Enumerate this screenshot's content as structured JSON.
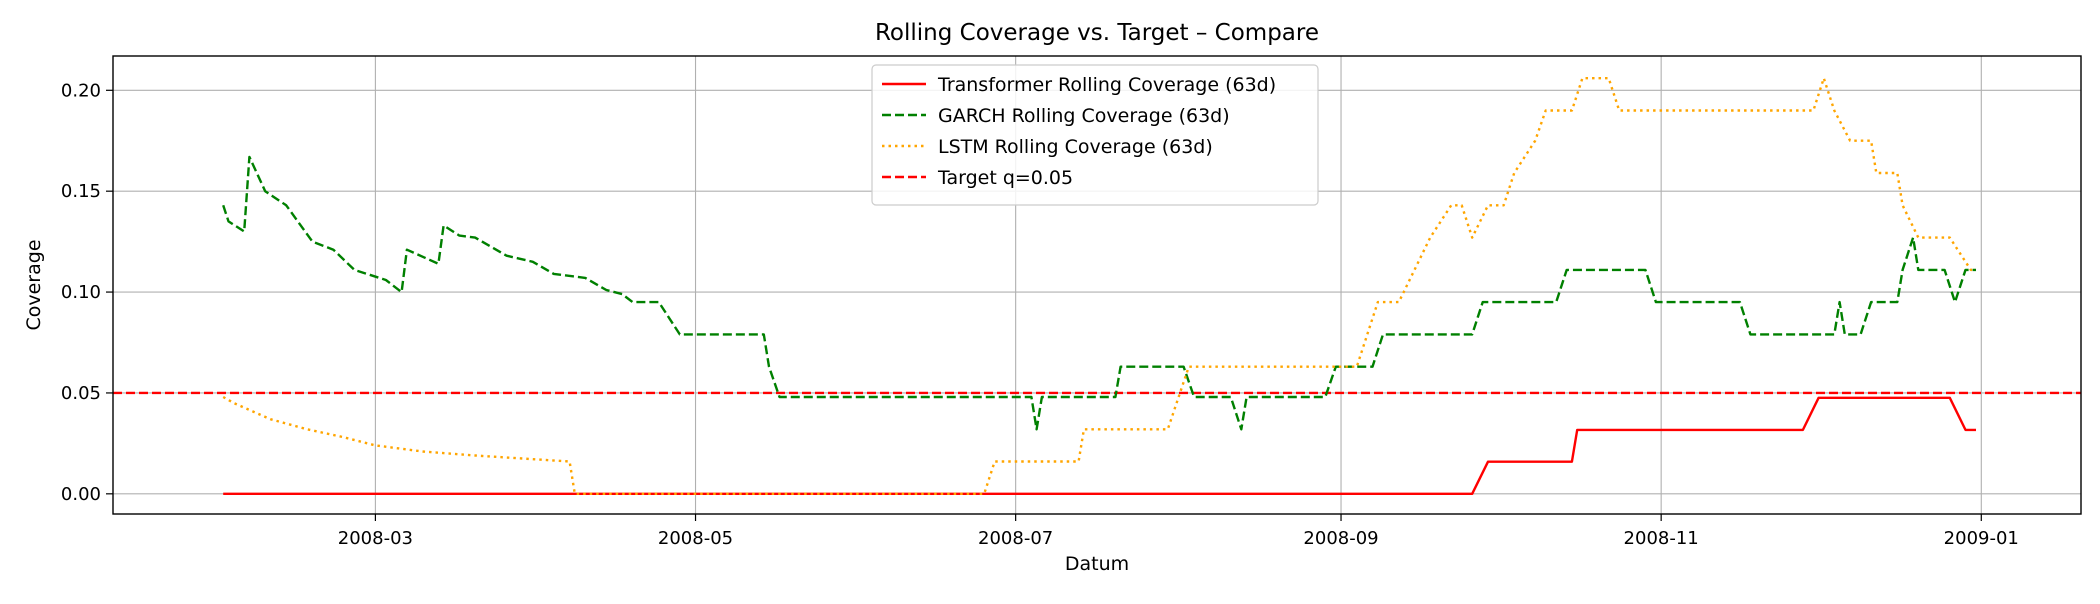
{
  "chart_data": {
    "type": "line",
    "title": "Rolling Coverage vs. Target – Compare",
    "xlabel": "Datum",
    "ylabel": "Coverage",
    "x_type": "date",
    "xlim": [
      "2008-01-11",
      "2009-01-20"
    ],
    "ylim": [
      -0.01,
      0.217
    ],
    "x_ticks": [
      "2008-03-01",
      "2008-05-01",
      "2008-07-01",
      "2008-09-01",
      "2008-11-01",
      "2009-01-01"
    ],
    "x_tick_labels": [
      "2008-03",
      "2008-05",
      "2008-07",
      "2008-09",
      "2008-11",
      "2009-01"
    ],
    "y_ticks": [
      0.0,
      0.05,
      0.1,
      0.15,
      0.2
    ],
    "y_tick_labels": [
      "0.00",
      "0.05",
      "0.10",
      "0.15",
      "0.20"
    ],
    "grid": true,
    "legend_position": "upper-center",
    "series": [
      {
        "name": "Transformer Rolling Coverage (63d)",
        "color": "#ff0000",
        "style": "solid",
        "points": [
          [
            "2008-02-01",
            0.0
          ],
          [
            "2008-09-26",
            0.0
          ],
          [
            "2008-09-29",
            0.0159
          ],
          [
            "2008-10-15",
            0.0159
          ],
          [
            "2008-10-16",
            0.0317
          ],
          [
            "2008-11-28",
            0.0317
          ],
          [
            "2008-12-01",
            0.0476
          ],
          [
            "2008-12-26",
            0.0476
          ],
          [
            "2008-12-29",
            0.0317
          ],
          [
            "2008-12-31",
            0.0317
          ]
        ]
      },
      {
        "name": "GARCH Rolling Coverage (63d)",
        "color": "#008000",
        "style": "dashed",
        "points": [
          [
            "2008-02-01",
            0.143
          ],
          [
            "2008-02-02",
            0.135
          ],
          [
            "2008-02-05",
            0.13
          ],
          [
            "2008-02-06",
            0.167
          ],
          [
            "2008-02-09",
            0.15
          ],
          [
            "2008-02-13",
            0.143
          ],
          [
            "2008-02-18",
            0.125
          ],
          [
            "2008-02-22",
            0.121
          ],
          [
            "2008-02-26",
            0.111
          ],
          [
            "2008-03-03",
            0.106
          ],
          [
            "2008-03-06",
            0.1
          ],
          [
            "2008-03-07",
            0.121
          ],
          [
            "2008-03-13",
            0.114
          ],
          [
            "2008-03-14",
            0.133
          ],
          [
            "2008-03-17",
            0.128
          ],
          [
            "2008-03-20",
            0.127
          ],
          [
            "2008-03-26",
            0.118
          ],
          [
            "2008-03-31",
            0.115
          ],
          [
            "2008-04-04",
            0.109
          ],
          [
            "2008-04-10",
            0.107
          ],
          [
            "2008-04-14",
            0.101
          ],
          [
            "2008-04-17",
            0.099
          ],
          [
            "2008-04-19",
            0.095
          ],
          [
            "2008-04-24",
            0.095
          ],
          [
            "2008-04-28",
            0.079
          ],
          [
            "2008-05-14",
            0.079
          ],
          [
            "2008-05-15",
            0.063
          ],
          [
            "2008-05-17",
            0.048
          ],
          [
            "2008-07-04",
            0.048
          ],
          [
            "2008-07-05",
            0.032
          ],
          [
            "2008-07-06",
            0.048
          ],
          [
            "2008-07-20",
            0.048
          ],
          [
            "2008-07-21",
            0.063
          ],
          [
            "2008-08-02",
            0.063
          ],
          [
            "2008-08-04",
            0.048
          ],
          [
            "2008-08-11",
            0.048
          ],
          [
            "2008-08-13",
            0.032
          ],
          [
            "2008-08-14",
            0.048
          ],
          [
            "2008-08-29",
            0.048
          ],
          [
            "2008-08-31",
            0.063
          ],
          [
            "2008-09-07",
            0.063
          ],
          [
            "2008-09-09",
            0.079
          ],
          [
            "2008-09-26",
            0.079
          ],
          [
            "2008-09-28",
            0.095
          ],
          [
            "2008-10-12",
            0.095
          ],
          [
            "2008-10-14",
            0.111
          ],
          [
            "2008-10-29",
            0.111
          ],
          [
            "2008-10-31",
            0.095
          ],
          [
            "2008-11-16",
            0.095
          ],
          [
            "2008-11-18",
            0.079
          ],
          [
            "2008-12-04",
            0.079
          ],
          [
            "2008-12-05",
            0.095
          ],
          [
            "2008-12-06",
            0.079
          ],
          [
            "2008-12-09",
            0.079
          ],
          [
            "2008-12-11",
            0.095
          ],
          [
            "2008-12-16",
            0.095
          ],
          [
            "2008-12-17",
            0.111
          ],
          [
            "2008-12-19",
            0.127
          ],
          [
            "2008-12-20",
            0.111
          ],
          [
            "2008-12-25",
            0.111
          ],
          [
            "2008-12-27",
            0.095
          ],
          [
            "2008-12-29",
            0.111
          ],
          [
            "2008-12-31",
            0.111
          ]
        ]
      },
      {
        "name": "LSTM Rolling Coverage (63d)",
        "color": "#ffa500",
        "style": "dotted",
        "points": [
          [
            "2008-02-01",
            0.048
          ],
          [
            "2008-02-03",
            0.045
          ],
          [
            "2008-02-10",
            0.037
          ],
          [
            "2008-02-17",
            0.032
          ],
          [
            "2008-02-24",
            0.028
          ],
          [
            "2008-03-01",
            0.024
          ],
          [
            "2008-03-10",
            0.021
          ],
          [
            "2008-03-20",
            0.019
          ],
          [
            "2008-04-01",
            0.017
          ],
          [
            "2008-04-07",
            0.016
          ],
          [
            "2008-04-08",
            0.0
          ],
          [
            "2008-06-25",
            0.0
          ],
          [
            "2008-06-27",
            0.016
          ],
          [
            "2008-07-13",
            0.016
          ],
          [
            "2008-07-14",
            0.032
          ],
          [
            "2008-07-30",
            0.032
          ],
          [
            "2008-08-03",
            0.063
          ],
          [
            "2008-09-04",
            0.063
          ],
          [
            "2008-09-06",
            0.079
          ],
          [
            "2008-09-08",
            0.095
          ],
          [
            "2008-09-12",
            0.095
          ],
          [
            "2008-09-15",
            0.111
          ],
          [
            "2008-09-18",
            0.127
          ],
          [
            "2008-09-22",
            0.143
          ],
          [
            "2008-09-24",
            0.143
          ],
          [
            "2008-09-26",
            0.127
          ],
          [
            "2008-09-29",
            0.143
          ],
          [
            "2008-10-02",
            0.143
          ],
          [
            "2008-10-04",
            0.159
          ],
          [
            "2008-10-08",
            0.175
          ],
          [
            "2008-10-10",
            0.19
          ],
          [
            "2008-10-15",
            0.19
          ],
          [
            "2008-10-17",
            0.206
          ],
          [
            "2008-10-22",
            0.206
          ],
          [
            "2008-10-24",
            0.19
          ],
          [
            "2008-11-30",
            0.19
          ],
          [
            "2008-12-02",
            0.206
          ],
          [
            "2008-12-04",
            0.19
          ],
          [
            "2008-12-07",
            0.175
          ],
          [
            "2008-12-11",
            0.175
          ],
          [
            "2008-12-12",
            0.159
          ],
          [
            "2008-12-16",
            0.159
          ],
          [
            "2008-12-17",
            0.143
          ],
          [
            "2008-12-20",
            0.127
          ],
          [
            "2008-12-26",
            0.127
          ],
          [
            "2008-12-30",
            0.111
          ],
          [
            "2008-12-31",
            0.111
          ]
        ]
      }
    ],
    "reference_lines": [
      {
        "name": "Target q=0.05",
        "y": 0.05,
        "color": "#ff0000",
        "style": "dashed"
      }
    ]
  }
}
